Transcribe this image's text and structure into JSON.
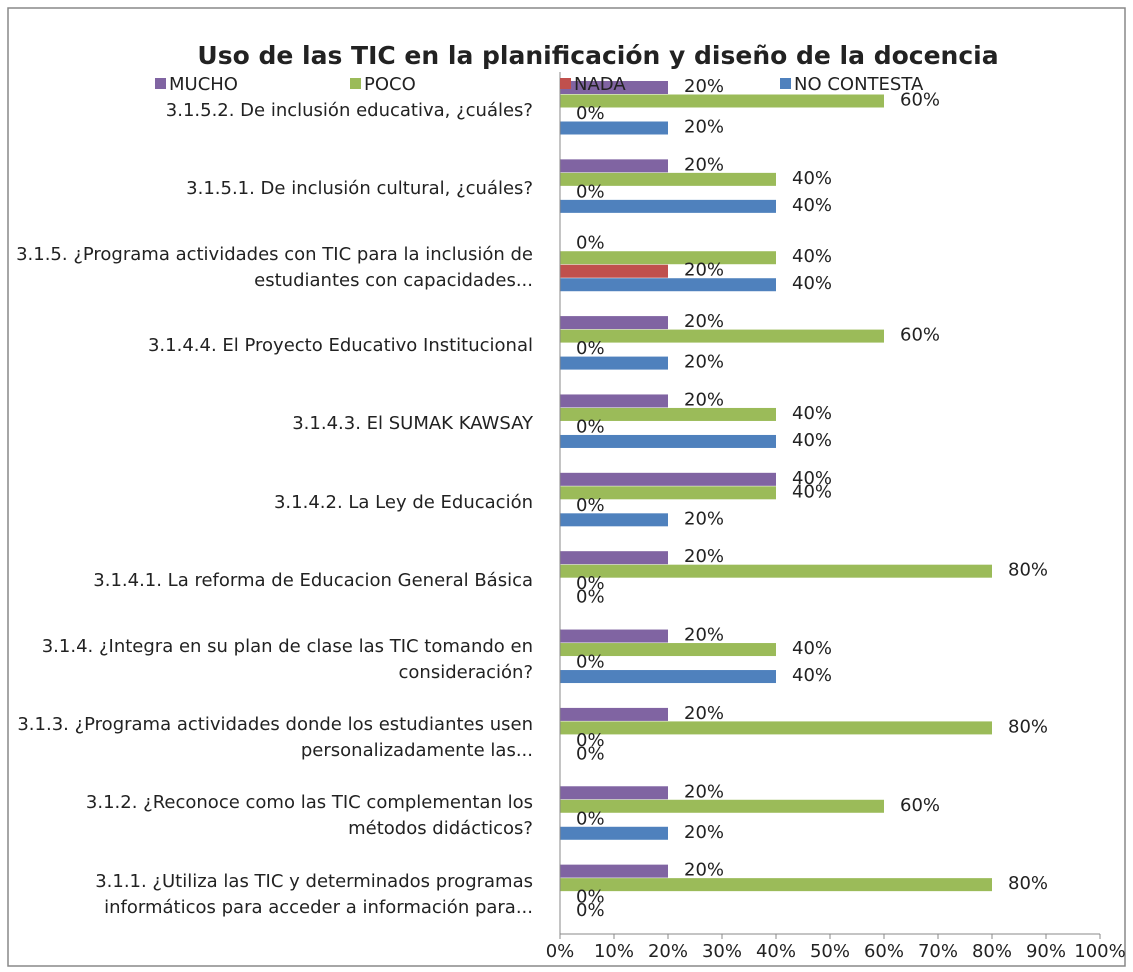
{
  "chart_data": {
    "type": "bar",
    "orientation": "horizontal",
    "title": "Uso de las TIC en la planificación y diseño de la docencia",
    "categories": [
      "3.1.5.2. De inclusión educativa, ¿cuáles?",
      "3.1.5.1. De inclusión cultural, ¿cuáles?",
      "3.1.5. ¿Programa actividades con TIC para la inclusión de estudiantes con capacidades...",
      "3.1.4.4. El Proyecto Educativo Institucional",
      "3.1.4.3. El SUMAK KAWSAY",
      "3.1.4.2. La Ley de Educación",
      "3.1.4.1. La reforma de Educacion General Básica",
      "3.1.4. ¿Integra en su plan de clase las TIC tomando en consideración?",
      "3.1.3. ¿Programa actividades donde los estudiantes usen personalizadamente las...",
      "3.1.2. ¿Reconoce como las TIC complementan los métodos didácticos?",
      "3.1.1. ¿Utiliza las TIC y determinados programas informáticos para acceder a información para..."
    ],
    "series": [
      {
        "name": "MUCHO",
        "color": "#8064a2",
        "values": [
          20,
          20,
          0,
          20,
          20,
          40,
          20,
          20,
          20,
          20,
          20
        ],
        "value_labels": [
          "20%",
          "20%",
          "0%",
          "20%",
          "20%",
          "40%",
          "20%",
          "20%",
          "20%",
          "20%",
          "20%"
        ]
      },
      {
        "name": "POCO",
        "color": "#9bbb59",
        "values": [
          60,
          40,
          40,
          60,
          40,
          40,
          80,
          40,
          80,
          60,
          80
        ],
        "value_labels": [
          "60%",
          "40%",
          "40%",
          "60%",
          "40%",
          "40%",
          "80%",
          "40%",
          "80%",
          "60%",
          "80%"
        ]
      },
      {
        "name": "NADA",
        "color": "#c0504d",
        "values": [
          0,
          0,
          20,
          0,
          0,
          0,
          0,
          0,
          0,
          0,
          0
        ],
        "value_labels": [
          "0%",
          "0%",
          "20%",
          "0%",
          "0%",
          "0%",
          "0%",
          "0%",
          "0%",
          "0%",
          "0%"
        ]
      },
      {
        "name": "NO CONTESTA",
        "color": "#4f81bd",
        "values": [
          20,
          40,
          40,
          20,
          40,
          20,
          0,
          40,
          0,
          20,
          0
        ],
        "value_labels": [
          "20%",
          "40%",
          "40%",
          "20%",
          "40%",
          "20%",
          "0%",
          "40%",
          "0%",
          "20%",
          "0%"
        ]
      }
    ],
    "xlim": [
      0,
      100
    ],
    "xticks": [
      {
        "value": 0,
        "label": "0%"
      },
      {
        "value": 10,
        "label": "10%"
      },
      {
        "value": 20,
        "label": "20%"
      },
      {
        "value": 30,
        "label": "30%"
      },
      {
        "value": 40,
        "label": "40%"
      },
      {
        "value": 50,
        "label": "50%"
      },
      {
        "value": 60,
        "label": "60%"
      },
      {
        "value": 70,
        "label": "70%"
      },
      {
        "value": 80,
        "label": "80%"
      },
      {
        "value": 90,
        "label": "90%"
      },
      {
        "value": 100,
        "label": "100%"
      }
    ],
    "grid": false,
    "legend": "top"
  }
}
